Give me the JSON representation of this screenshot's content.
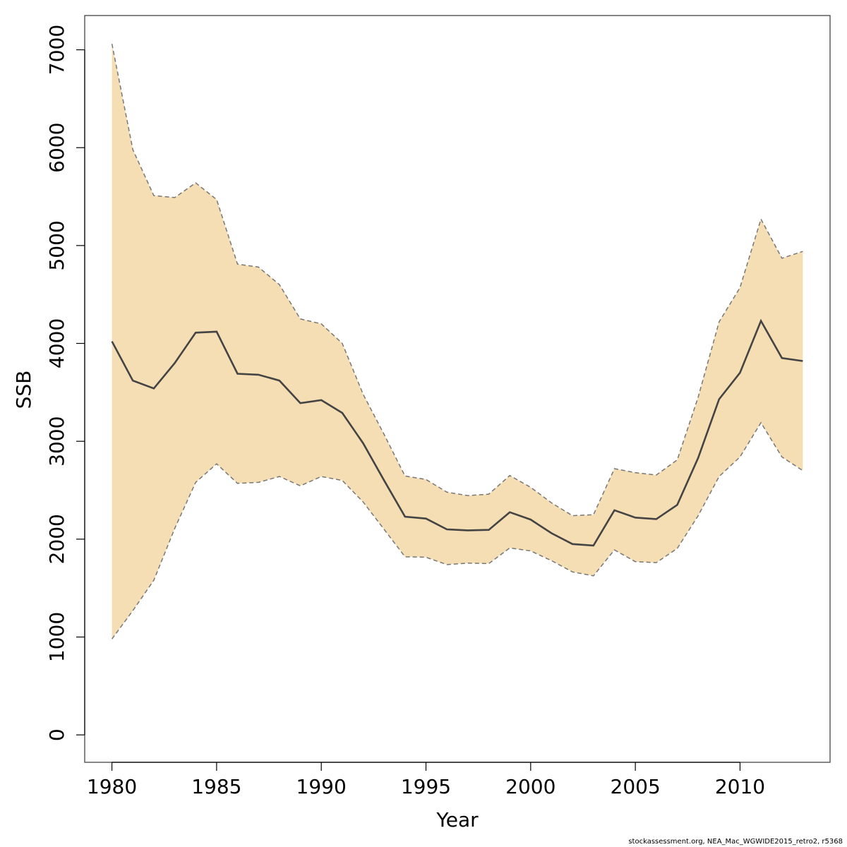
{
  "chart_data": {
    "type": "area",
    "title": "",
    "xlabel": "Year",
    "ylabel": "SSB",
    "xlim": [
      1978.7,
      2014.3
    ],
    "ylim": [
      -280,
      7350
    ],
    "x_ticks": [
      1980,
      1985,
      1990,
      1995,
      2000,
      2005,
      2010
    ],
    "y_ticks": [
      0,
      1000,
      2000,
      3000,
      4000,
      5000,
      6000,
      7000
    ],
    "grid": false,
    "legend": "none",
    "colors": {
      "band": "#f5deb3",
      "line": "#444444",
      "bounds": "#777777"
    },
    "x": [
      1980,
      1981,
      1982,
      1983,
      1984,
      1985,
      1986,
      1987,
      1988,
      1989,
      1990,
      1991,
      1992,
      1993,
      1994,
      1995,
      1996,
      1997,
      1998,
      1999,
      2000,
      2001,
      2002,
      2003,
      2004,
      2005,
      2006,
      2007,
      2008,
      2009,
      2010,
      2011,
      2012,
      2013
    ],
    "series": [
      {
        "role": "estimate",
        "values": [
          4020,
          3620,
          3540,
          3800,
          4110,
          4120,
          3690,
          3680,
          3620,
          3390,
          3420,
          3290,
          2980,
          2600,
          2230,
          2210,
          2100,
          2090,
          2095,
          2275,
          2200,
          2060,
          1950,
          1935,
          2295,
          2220,
          2205,
          2350,
          2830,
          3430,
          3700,
          4230,
          3850,
          3820
        ]
      },
      {
        "role": "lower",
        "values": [
          980,
          1270,
          1580,
          2110,
          2580,
          2770,
          2570,
          2580,
          2640,
          2545,
          2640,
          2600,
          2380,
          2100,
          1820,
          1815,
          1740,
          1755,
          1750,
          1910,
          1880,
          1780,
          1665,
          1625,
          1890,
          1770,
          1760,
          1905,
          2240,
          2640,
          2840,
          3190,
          2840,
          2700
        ]
      },
      {
        "role": "upper",
        "values": [
          7060,
          5980,
          5510,
          5490,
          5640,
          5470,
          4810,
          4780,
          4600,
          4250,
          4200,
          4000,
          3480,
          3070,
          2645,
          2610,
          2480,
          2445,
          2460,
          2650,
          2530,
          2370,
          2240,
          2250,
          2720,
          2680,
          2655,
          2810,
          3450,
          4220,
          4570,
          5270,
          4870,
          4940
        ]
      }
    ]
  },
  "footnote": "stockassessment.org, NEA_Mac_WGWIDE2015_retro2, r5368"
}
